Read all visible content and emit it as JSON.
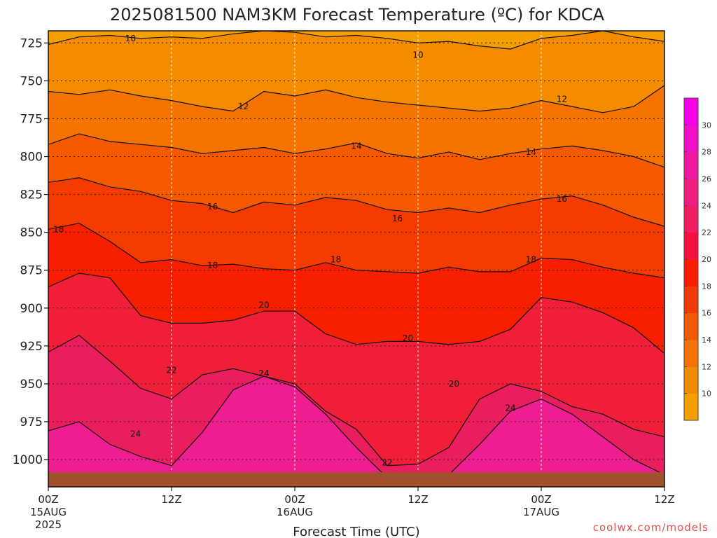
{
  "chart_data": {
    "type": "heatmap",
    "title": "2025081500 NAM3KM Forecast Temperature (ºC) for KDCA",
    "xlabel": "Forecast Time (UTC)",
    "ylabel": "",
    "y_axis": {
      "inverted": true,
      "ylim": [
        1018,
        717
      ],
      "ticks": [
        725,
        750,
        775,
        800,
        825,
        850,
        875,
        900,
        925,
        950,
        975,
        1000
      ]
    },
    "x_axis": {
      "xlim": [
        0,
        60
      ],
      "ticks": [
        {
          "hour": 0,
          "label": "00Z",
          "sub": "15AUG",
          "sub2": "2025"
        },
        {
          "hour": 12,
          "label": "12Z",
          "sub": "",
          "sub2": ""
        },
        {
          "hour": 24,
          "label": "00Z",
          "sub": "16AUG",
          "sub2": ""
        },
        {
          "hour": 36,
          "label": "12Z",
          "sub": "",
          "sub2": ""
        },
        {
          "hour": 48,
          "label": "00Z",
          "sub": "17AUG",
          "sub2": ""
        },
        {
          "hour": 60,
          "label": "12Z",
          "sub": "",
          "sub2": ""
        }
      ]
    },
    "grid": true,
    "ground_pressure": 1010,
    "hours": [
      0,
      3,
      6,
      9,
      12,
      15,
      18,
      21,
      24,
      27,
      30,
      33,
      36,
      39,
      42,
      45,
      48,
      51,
      54,
      57,
      60
    ],
    "isotherms": [
      {
        "temp": 10,
        "p": [
          726,
          721,
          720,
          722,
          721,
          722,
          719,
          717,
          718,
          721,
          720,
          722,
          725,
          724,
          727,
          729,
          722,
          720,
          717,
          721,
          724
        ]
      },
      {
        "temp": 12,
        "p": [
          757,
          759,
          756,
          760,
          763,
          767,
          770,
          757,
          760,
          756,
          761,
          764,
          766,
          768,
          770,
          768,
          763,
          767,
          771,
          767,
          753
        ]
      },
      {
        "temp": 14,
        "p": [
          792,
          785,
          790,
          792,
          794,
          798,
          796,
          794,
          798,
          795,
          791,
          798,
          801,
          797,
          802,
          798,
          795,
          793,
          796,
          800,
          807
        ]
      },
      {
        "temp": 16,
        "p": [
          817,
          814,
          820,
          823,
          829,
          831,
          837,
          830,
          832,
          827,
          829,
          835,
          837,
          834,
          837,
          832,
          828,
          826,
          832,
          840,
          846
        ]
      },
      {
        "temp": 18,
        "p": [
          848,
          844,
          856,
          870,
          868,
          872,
          871,
          874,
          875,
          870,
          875,
          876,
          877,
          873,
          876,
          876,
          867,
          868,
          873,
          877,
          880
        ]
      },
      {
        "temp": 20,
        "p": [
          886,
          877,
          880,
          905,
          910,
          910,
          908,
          902,
          902,
          917,
          924,
          922,
          922,
          924,
          922,
          914,
          893,
          896,
          903,
          913,
          930
        ]
      },
      {
        "temp": 22,
        "p": [
          929,
          918,
          935,
          953,
          960,
          944,
          940,
          945,
          950,
          968,
          980,
          1004,
          1003,
          992,
          960,
          950,
          955,
          965,
          970,
          980,
          985
        ]
      },
      {
        "temp": 24,
        "p": [
          981,
          975,
          990,
          998,
          1004,
          982,
          954,
          945,
          952,
          970,
          992,
          1012,
          1014,
          1010,
          990,
          968,
          960,
          970,
          985,
          1000,
          1010
        ]
      }
    ],
    "contour_labels": [
      {
        "text": "10",
        "hour": 8.0,
        "p": 722
      },
      {
        "text": "10",
        "hour": 36.0,
        "p": 733
      },
      {
        "text": "12",
        "hour": 19.0,
        "p": 767
      },
      {
        "text": "12",
        "hour": 50.0,
        "p": 762
      },
      {
        "text": "14",
        "hour": 30.0,
        "p": 793
      },
      {
        "text": "14",
        "hour": 47.0,
        "p": 797
      },
      {
        "text": "16",
        "hour": 16.0,
        "p": 833
      },
      {
        "text": "16",
        "hour": 34.0,
        "p": 841
      },
      {
        "text": "16",
        "hour": 50.0,
        "p": 828
      },
      {
        "text": "18",
        "hour": 1.0,
        "p": 848
      },
      {
        "text": "18",
        "hour": 16.0,
        "p": 872
      },
      {
        "text": "18",
        "hour": 28.0,
        "p": 868
      },
      {
        "text": "18",
        "hour": 47.0,
        "p": 868
      },
      {
        "text": "20",
        "hour": 21.0,
        "p": 898
      },
      {
        "text": "20",
        "hour": 35.0,
        "p": 920
      },
      {
        "text": "20",
        "hour": 39.5,
        "p": 950
      },
      {
        "text": "22",
        "hour": 12.0,
        "p": 941
      },
      {
        "text": "22",
        "hour": 33.0,
        "p": 1002
      },
      {
        "text": "24",
        "hour": 8.5,
        "p": 983
      },
      {
        "text": "24",
        "hour": 21.0,
        "p": 943
      },
      {
        "text": "24",
        "hour": 45.0,
        "p": 966
      }
    ],
    "colorbar": {
      "levels": [
        10,
        12,
        14,
        16,
        18,
        20,
        22,
        24,
        26,
        28,
        30
      ],
      "colors": [
        "#f5a000",
        "#f08c00",
        "#f57400",
        "#f05a00",
        "#f03c00",
        "#fa1e00",
        "#f51040",
        "#f01e60",
        "#f01c80",
        "#f018a0",
        "#f010c8",
        "#f500e8"
      ]
    },
    "band_colors": [
      "#f5a000",
      "#f58c00",
      "#f57400",
      "#f55a00",
      "#f53c00",
      "#f81e00",
      "#f01e36",
      "#ea1e5c",
      "#ee1e90",
      "#f008cc"
    ],
    "ground_color": "#a0522d",
    "contour_color": "#111111"
  },
  "credit": "coolwx.com/models"
}
